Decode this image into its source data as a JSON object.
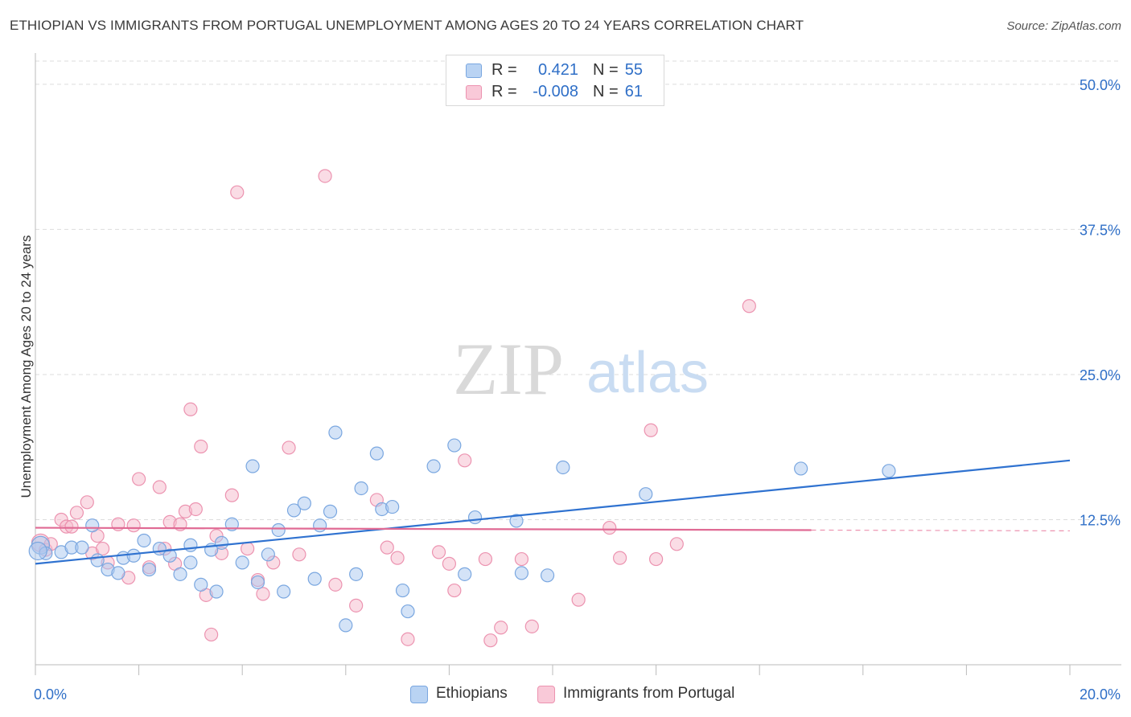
{
  "title": "ETHIOPIAN VS IMMIGRANTS FROM PORTUGAL UNEMPLOYMENT AMONG AGES 20 TO 24 YEARS CORRELATION CHART",
  "source": "Source: ZipAtlas.com",
  "watermark": {
    "part1": "ZIP",
    "part2": "atlas"
  },
  "legend_stats": [
    {
      "r_label": "R =",
      "r_value": "0.421",
      "n_label": "N =",
      "n_value": "55"
    },
    {
      "r_label": "R =",
      "r_value": "-0.008",
      "n_label": "N =",
      "n_value": "61"
    }
  ],
  "colors": {
    "blue_fill": "#a9c8f0",
    "blue_stroke": "#7aa7e0",
    "blue_line": "#2f72d0",
    "pink_fill": "#f6b9cc",
    "pink_stroke": "#ec93b0",
    "pink_line": "#e06a94",
    "value_text": "#2f6fc7",
    "grid": "#dddddd"
  },
  "chart_data": {
    "type": "scatter",
    "title": "ETHIOPIAN VS IMMIGRANTS FROM PORTUGAL UNEMPLOYMENT AMONG AGES 20 TO 24 YEARS CORRELATION CHART",
    "xlabel": "",
    "ylabel": "Unemployment Among Ages 20 to 24 years",
    "xlim": [
      0,
      20
    ],
    "ylim": [
      0,
      52
    ],
    "x_ticks": [
      "0.0%",
      "20.0%"
    ],
    "y_ticks": [
      {
        "value": 12.5,
        "label": "12.5%"
      },
      {
        "value": 25,
        "label": "25.0%"
      },
      {
        "value": 37.5,
        "label": "37.5%"
      },
      {
        "value": 50,
        "label": "50.0%"
      }
    ],
    "legend": [
      "Ethiopians",
      "Immigrants from Portugal"
    ],
    "series": [
      {
        "name": "Ethiopians",
        "r": 0.421,
        "n": 55,
        "trend": {
          "x0": 0,
          "y0": 8.7,
          "x1": 20,
          "y1": 17.6
        },
        "points": [
          [
            0.1,
            10.3
          ],
          [
            0.2,
            9.6
          ],
          [
            0.5,
            9.7
          ],
          [
            0.7,
            10.1
          ],
          [
            0.9,
            10.1
          ],
          [
            1.1,
            12.0
          ],
          [
            1.2,
            9.0
          ],
          [
            1.4,
            8.2
          ],
          [
            1.6,
            7.9
          ],
          [
            1.7,
            9.2
          ],
          [
            1.9,
            9.4
          ],
          [
            2.1,
            10.7
          ],
          [
            2.2,
            8.2
          ],
          [
            2.4,
            10.0
          ],
          [
            2.6,
            9.4
          ],
          [
            2.8,
            7.8
          ],
          [
            3.0,
            10.3
          ],
          [
            3.0,
            8.8
          ],
          [
            3.2,
            6.9
          ],
          [
            3.4,
            9.9
          ],
          [
            3.5,
            6.3
          ],
          [
            3.6,
            10.5
          ],
          [
            3.8,
            12.1
          ],
          [
            4.0,
            8.8
          ],
          [
            4.2,
            17.1
          ],
          [
            4.3,
            7.1
          ],
          [
            4.5,
            9.5
          ],
          [
            4.7,
            11.6
          ],
          [
            4.8,
            6.3
          ],
          [
            5.0,
            13.3
          ],
          [
            5.2,
            13.9
          ],
          [
            5.4,
            7.4
          ],
          [
            5.5,
            12.0
          ],
          [
            5.7,
            13.2
          ],
          [
            5.8,
            20.0
          ],
          [
            6.0,
            3.4
          ],
          [
            6.2,
            7.8
          ],
          [
            6.3,
            15.2
          ],
          [
            6.6,
            18.2
          ],
          [
            6.7,
            13.4
          ],
          [
            6.9,
            13.6
          ],
          [
            7.1,
            6.4
          ],
          [
            7.2,
            4.6
          ],
          [
            7.7,
            17.1
          ],
          [
            8.1,
            18.9
          ],
          [
            8.3,
            7.8
          ],
          [
            8.5,
            12.7
          ],
          [
            9.3,
            12.4
          ],
          [
            9.4,
            7.9
          ],
          [
            9.9,
            7.7
          ],
          [
            10.2,
            17.0
          ],
          [
            11.8,
            14.7
          ],
          [
            14.8,
            16.9
          ],
          [
            16.5,
            16.7
          ],
          [
            0.05,
            9.8
          ]
        ]
      },
      {
        "name": "Immigrants from Portugal",
        "r": -0.008,
        "n": 61,
        "trend": {
          "x0": 0,
          "y0": 11.8,
          "x1": 15,
          "y1": 11.6
        },
        "points": [
          [
            0.1,
            10.5
          ],
          [
            0.2,
            9.9
          ],
          [
            0.3,
            10.4
          ],
          [
            0.5,
            12.5
          ],
          [
            0.6,
            11.9
          ],
          [
            0.7,
            11.9
          ],
          [
            0.8,
            13.1
          ],
          [
            1.0,
            14.0
          ],
          [
            1.1,
            9.6
          ],
          [
            1.2,
            11.1
          ],
          [
            1.3,
            10.0
          ],
          [
            1.4,
            8.8
          ],
          [
            1.6,
            12.1
          ],
          [
            1.8,
            7.5
          ],
          [
            1.9,
            12.0
          ],
          [
            2.0,
            16.0
          ],
          [
            2.2,
            8.4
          ],
          [
            2.4,
            15.3
          ],
          [
            2.5,
            10.0
          ],
          [
            2.6,
            12.3
          ],
          [
            2.7,
            8.7
          ],
          [
            2.8,
            12.1
          ],
          [
            2.9,
            13.2
          ],
          [
            3.0,
            22.0
          ],
          [
            3.1,
            13.4
          ],
          [
            3.2,
            18.8
          ],
          [
            3.3,
            6.0
          ],
          [
            3.4,
            2.6
          ],
          [
            3.5,
            11.1
          ],
          [
            3.6,
            9.6
          ],
          [
            3.8,
            14.6
          ],
          [
            3.9,
            40.7
          ],
          [
            4.1,
            10.0
          ],
          [
            4.3,
            7.3
          ],
          [
            4.4,
            6.1
          ],
          [
            4.6,
            8.8
          ],
          [
            4.9,
            18.7
          ],
          [
            5.1,
            9.5
          ],
          [
            5.6,
            42.1
          ],
          [
            5.8,
            6.9
          ],
          [
            6.2,
            5.1
          ],
          [
            6.6,
            14.2
          ],
          [
            6.8,
            10.1
          ],
          [
            7.0,
            9.2
          ],
          [
            7.2,
            2.2
          ],
          [
            7.8,
            9.7
          ],
          [
            8.0,
            8.7
          ],
          [
            8.1,
            6.4
          ],
          [
            8.3,
            17.6
          ],
          [
            8.7,
            9.1
          ],
          [
            8.8,
            2.1
          ],
          [
            9.0,
            3.2
          ],
          [
            9.4,
            9.1
          ],
          [
            9.6,
            3.3
          ],
          [
            10.5,
            5.6
          ],
          [
            11.1,
            11.8
          ],
          [
            11.3,
            9.2
          ],
          [
            11.9,
            20.2
          ],
          [
            12.0,
            9.1
          ],
          [
            12.4,
            10.4
          ],
          [
            13.8,
            30.9
          ]
        ]
      }
    ]
  }
}
